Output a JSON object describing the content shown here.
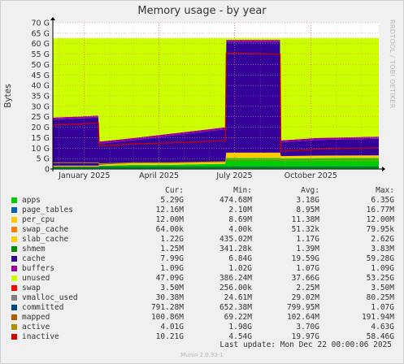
{
  "title": "Memory usage - by year",
  "side_label": "RRDTOOL / TOBI OETIKER",
  "footer": "Munin 2.0.33-1",
  "last_update": "Last update:  Mon Dec 22 00:00:06 2025",
  "legend_headers": {
    "cur": "Cur:",
    "min": "Min:",
    "avg": "Avg:",
    "max": "Max:"
  },
  "legend": [
    {
      "name": "apps",
      "color": "#00cc00",
      "cur": "5.29G",
      "min": "474.68M",
      "avg": "3.18G",
      "max": "6.35G"
    },
    {
      "name": "page_tables",
      "color": "#0066b3",
      "cur": "12.16M",
      "min": "2.10M",
      "avg": "8.95M",
      "max": "16.77M"
    },
    {
      "name": "per_cpu",
      "color": "#ffcc00",
      "cur": "12.00M",
      "min": "8.69M",
      "avg": "11.38M",
      "max": "12.00M"
    },
    {
      "name": "swap_cache",
      "color": "#ff8000",
      "cur": "64.00k",
      "min": "4.00k",
      "avg": "51.32k",
      "max": "79.95k"
    },
    {
      "name": "slab_cache",
      "color": "#ffcc00",
      "cur": "1.22G",
      "min": "435.02M",
      "avg": "1.17G",
      "max": "2.62G"
    },
    {
      "name": "shmem",
      "color": "#008f00",
      "cur": "1.25M",
      "min": "341.28k",
      "avg": "1.39M",
      "max": "3.83M"
    },
    {
      "name": "cache",
      "color": "#330099",
      "cur": "7.99G",
      "min": "6.84G",
      "avg": "19.59G",
      "max": "59.28G"
    },
    {
      "name": "buffers",
      "color": "#990099",
      "cur": "1.09G",
      "min": "1.02G",
      "avg": "1.07G",
      "max": "1.09G"
    },
    {
      "name": "unused",
      "color": "#ccff00",
      "cur": "47.09G",
      "min": "386.24M",
      "avg": "37.66G",
      "max": "53.25G"
    },
    {
      "name": "swap",
      "color": "#ff0000",
      "cur": "3.50M",
      "min": "256.00k",
      "avg": "2.25M",
      "max": "3.50M"
    },
    {
      "name": "vmalloc_used",
      "color": "#808080",
      "cur": "30.38M",
      "min": "24.61M",
      "avg": "29.02M",
      "max": "80.25M"
    },
    {
      "name": "committed",
      "color": "#00487d",
      "cur": "791.28M",
      "min": "652.38M",
      "avg": "799.95M",
      "max": "1.07G"
    },
    {
      "name": "mapped",
      "color": "#b35a00",
      "cur": "100.86M",
      "min": "69.22M",
      "avg": "102.64M",
      "max": "191.94M"
    },
    {
      "name": "active",
      "color": "#b38f00",
      "cur": "4.01G",
      "min": "1.98G",
      "avg": "3.70G",
      "max": "4.63G"
    },
    {
      "name": "inactive",
      "color": "#cc0000",
      "cur": "10.21G",
      "min": "4.54G",
      "avg": "19.97G",
      "max": "58.46G"
    }
  ],
  "chart_data": {
    "type": "area",
    "title": "Memory usage - by year",
    "ylabel": "Bytes",
    "ylim": [
      0,
      70
    ],
    "y_unit": "G",
    "yticks": [
      "0",
      "5 G",
      "10 G",
      "15 G",
      "20 G",
      "25 G",
      "30 G",
      "35 G",
      "40 G",
      "45 G",
      "50 G",
      "55 G",
      "60 G",
      "65 G",
      "70 G"
    ],
    "xlim": [
      "2024-11-24",
      "2025-12-22"
    ],
    "xticks": [
      {
        "label": "January 2025",
        "date": "2025-01-01"
      },
      {
        "label": "April 2025",
        "date": "2025-04-01"
      },
      {
        "label": "July 2025",
        "date": "2025-07-01"
      },
      {
        "label": "October 2025",
        "date": "2025-10-01"
      }
    ],
    "x": [
      "2024-11-24",
      "2025-01-18",
      "2025-01-19",
      "2025-03-01",
      "2025-04-15",
      "2025-06-20",
      "2025-06-21",
      "2025-08-25",
      "2025-08-26",
      "2025-10-10",
      "2025-12-22"
    ],
    "series": [
      {
        "name": "apps",
        "values": [
          1.0,
          1.0,
          1.5,
          2.0,
          2.0,
          2.5,
          5.3,
          5.3,
          5.0,
          5.2,
          5.3
        ]
      },
      {
        "name": "slab_cache",
        "values": [
          0.6,
          0.6,
          0.6,
          0.8,
          0.9,
          1.0,
          2.5,
          2.5,
          1.2,
          1.2,
          1.2
        ]
      },
      {
        "name": "cache",
        "values": [
          22.0,
          23.0,
          10.0,
          11.0,
          13.0,
          15.5,
          53.0,
          53.0,
          6.5,
          7.5,
          8.0
        ]
      },
      {
        "name": "buffers",
        "values": [
          1.0,
          1.0,
          1.0,
          1.0,
          1.0,
          1.0,
          1.0,
          1.0,
          1.0,
          1.0,
          1.0
        ]
      },
      {
        "name": "unused",
        "values": [
          38.0,
          37.0,
          49.5,
          47.8,
          45.7,
          42.7,
          0.9,
          0.9,
          49.0,
          47.8,
          47.2
        ]
      },
      {
        "name": "swap",
        "values": [
          0,
          0,
          0,
          0,
          0,
          0,
          0,
          0,
          0,
          0,
          0
        ]
      },
      {
        "name": "committed",
        "values": [
          0.8,
          0.8,
          0.8,
          0.8,
          0.8,
          0.8,
          0.8,
          0.8,
          0.8,
          0.8,
          0.8
        ]
      },
      {
        "name": "active",
        "values": [
          3.0,
          3.0,
          2.5,
          3.0,
          3.0,
          3.5,
          4.5,
          4.5,
          4.0,
          4.0,
          4.0
        ]
      },
      {
        "name": "inactive",
        "values": [
          21.0,
          22.0,
          11.0,
          12.0,
          12.5,
          13.5,
          55.5,
          55.0,
          8.5,
          9.5,
          10.2
        ]
      }
    ]
  }
}
